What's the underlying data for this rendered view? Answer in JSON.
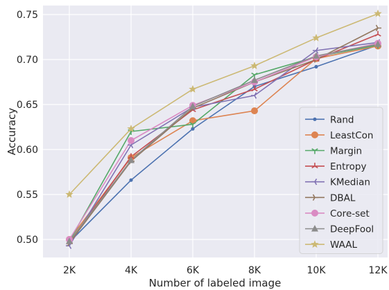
{
  "chart_data": {
    "type": "line",
    "title": "",
    "xlabel": "Number of labeled image",
    "ylabel": "Accuracy",
    "categories": [
      "2K",
      "4K",
      "6K",
      "8K",
      "10K",
      "12K"
    ],
    "ylim": [
      0.48,
      0.76
    ],
    "yticks": [
      0.5,
      0.55,
      0.6,
      0.65,
      0.7,
      0.75
    ],
    "ytick_labels": [
      "0.50",
      "0.55",
      "0.60",
      "0.65",
      "0.70",
      "0.75"
    ],
    "grid": true,
    "legend_position": "bottom-right",
    "series": [
      {
        "name": "Rand",
        "color": "#4c72b0",
        "marker": "point",
        "values": [
          0.497,
          0.566,
          0.623,
          0.67,
          0.692,
          0.716
        ]
      },
      {
        "name": "LeastCon",
        "color": "#dd8452",
        "marker": "circle",
        "values": [
          0.5,
          0.591,
          0.632,
          0.643,
          0.701,
          0.715
        ]
      },
      {
        "name": "Margin",
        "color": "#55a868",
        "marker": "tri_down",
        "values": [
          0.498,
          0.62,
          0.628,
          0.683,
          0.703,
          0.716
        ]
      },
      {
        "name": "Entropy",
        "color": "#c44e52",
        "marker": "tri_up",
        "values": [
          0.497,
          0.592,
          0.644,
          0.667,
          0.7,
          0.728
        ]
      },
      {
        "name": "KMedian",
        "color": "#8172b3",
        "marker": "tri_left",
        "values": [
          0.493,
          0.605,
          0.647,
          0.66,
          0.71,
          0.719
        ]
      },
      {
        "name": "DBAL",
        "color": "#937860",
        "marker": "tri_right",
        "values": [
          0.496,
          0.587,
          0.646,
          0.675,
          0.7,
          0.735
        ]
      },
      {
        "name": "Core-set",
        "color": "#da8bc3",
        "marker": "circle",
        "values": [
          0.5,
          0.61,
          0.649,
          0.675,
          0.703,
          0.718
        ]
      },
      {
        "name": "DeepFool",
        "color": "#8c8c8c",
        "marker": "triangle",
        "values": [
          0.498,
          0.588,
          0.648,
          0.677,
          0.704,
          0.717
        ]
      },
      {
        "name": "WAAL",
        "color": "#ccb974",
        "marker": "star",
        "values": [
          0.55,
          0.623,
          0.667,
          0.693,
          0.724,
          0.751
        ]
      }
    ]
  }
}
